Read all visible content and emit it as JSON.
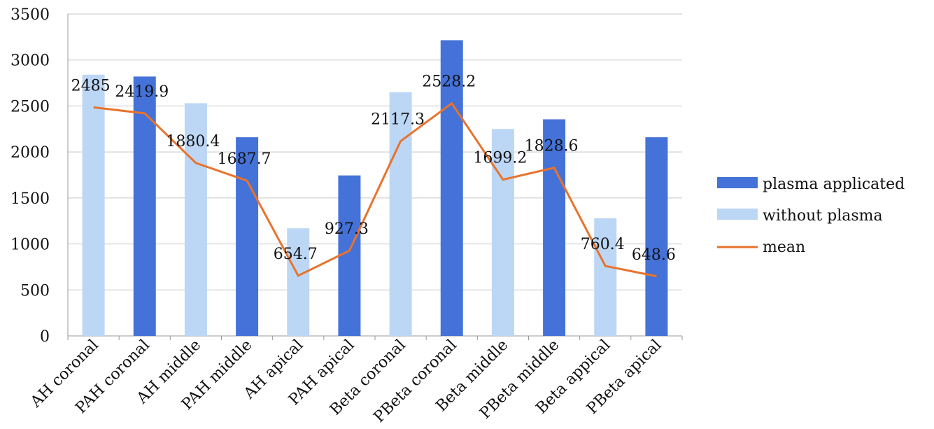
{
  "colors": {
    "plasma": "#4472d8",
    "without": "#bcd6f5",
    "mean": "#e8732c"
  },
  "chart_data": {
    "type": "bar",
    "categories": [
      "AH coronal",
      "PAH coronal",
      "AH middle",
      "PAH middle",
      "AH apical",
      "PAH apical",
      "Beta coronal",
      "PBeta coronal",
      "Beta middle",
      "PBeta middle",
      "Beta appical",
      "PBeta apical"
    ],
    "ylim": [
      0,
      3500
    ],
    "yticks": [
      0,
      500,
      1000,
      1500,
      2000,
      2500,
      3000,
      3500
    ],
    "grid": true,
    "legend_position": "right",
    "series": [
      {
        "name": "plasma applicated",
        "kind": "bar",
        "values": [
          null,
          2820,
          null,
          2160,
          null,
          1745,
          null,
          3215,
          null,
          2355,
          null,
          2160
        ]
      },
      {
        "name": "without plasma",
        "kind": "bar",
        "values": [
          2840,
          null,
          2530,
          null,
          1170,
          null,
          2650,
          null,
          2250,
          null,
          1280,
          null
        ]
      },
      {
        "name": "mean",
        "kind": "line",
        "values": [
          2485,
          2419.9,
          1880.4,
          1687.7,
          654.7,
          927.3,
          2117.3,
          2528.2,
          1699.2,
          1828.6,
          760.4,
          648.6
        ]
      }
    ],
    "data_labels": [
      "2485",
      "2419.9",
      "1880.4",
      "1687.7",
      "654.7",
      "927.3",
      "2117.3",
      "2528.2",
      "1699.2",
      "1828.6",
      "760.4",
      "648.6"
    ]
  }
}
